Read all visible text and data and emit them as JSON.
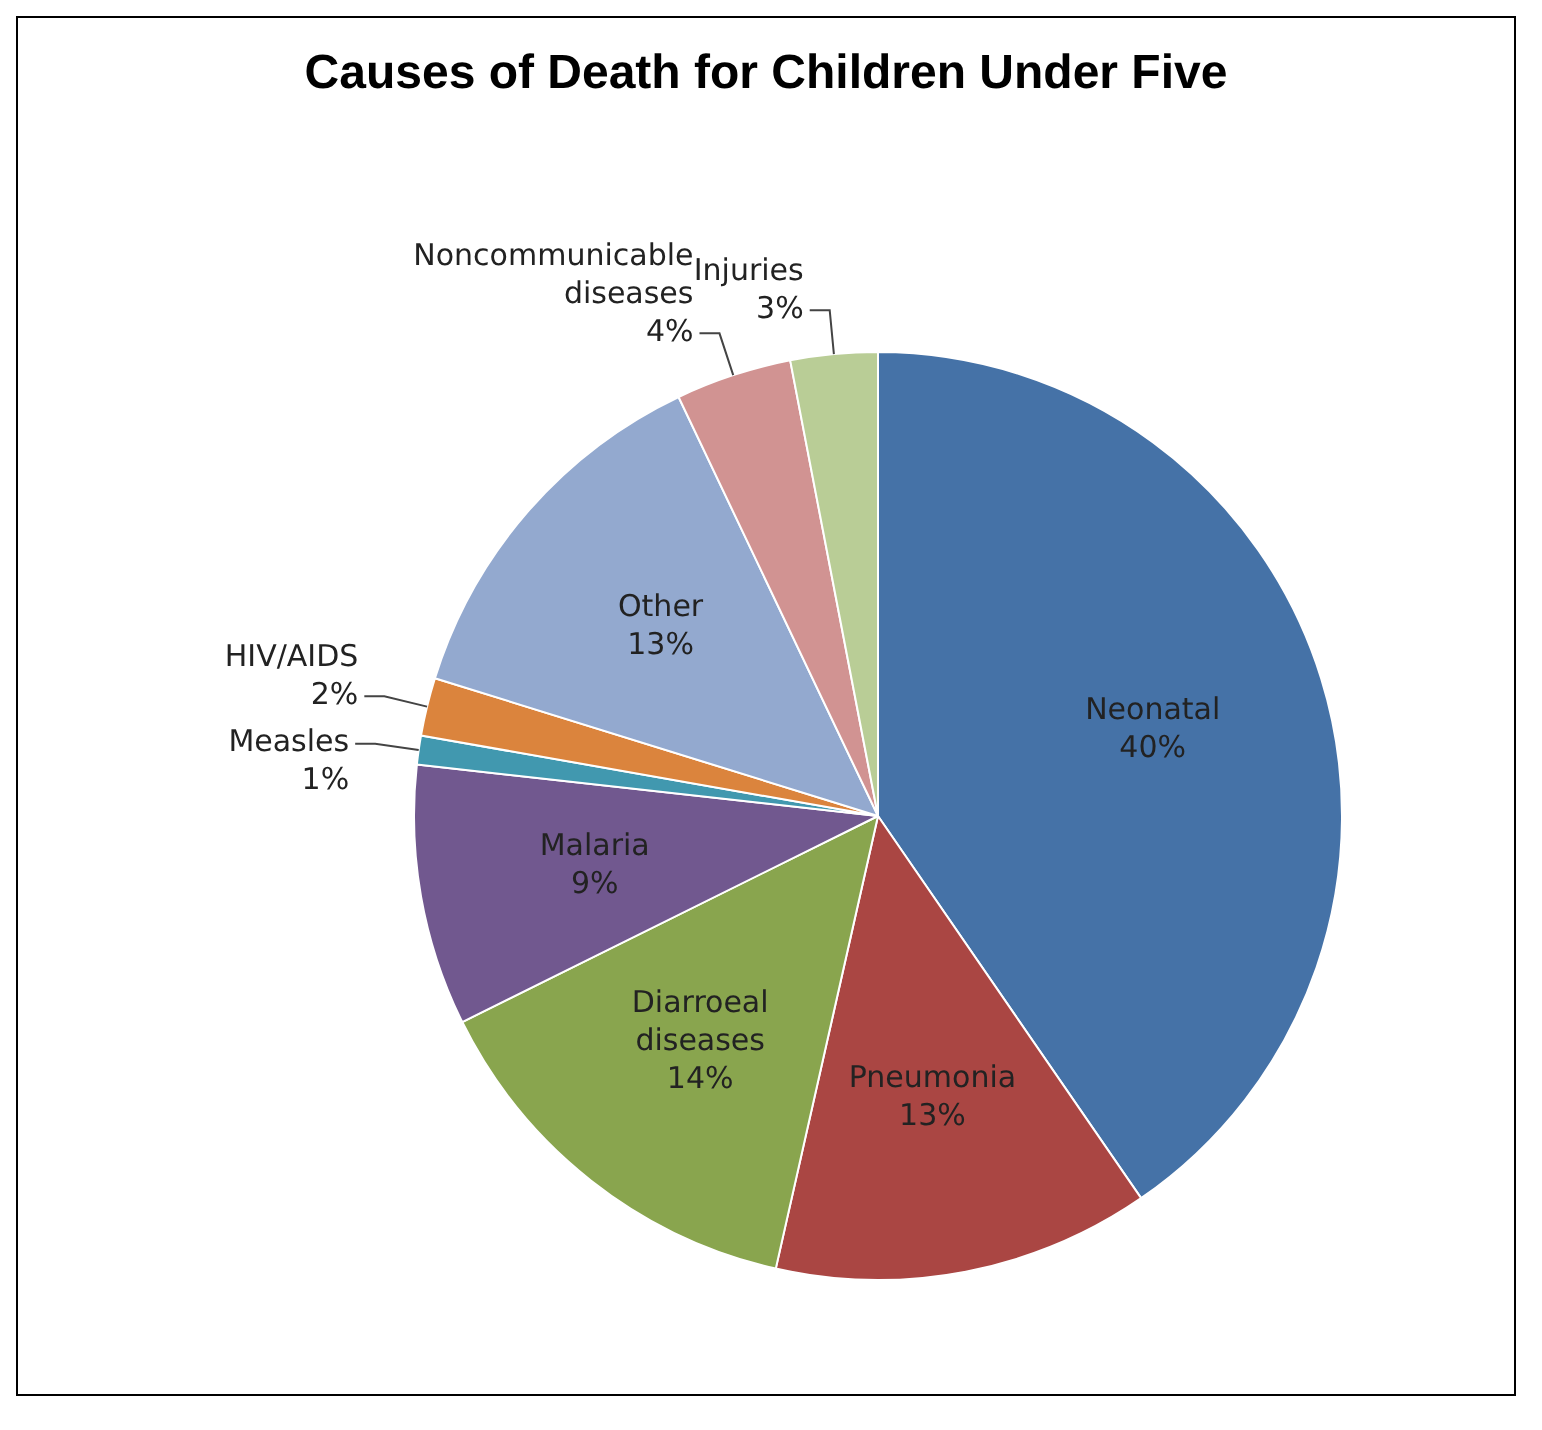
{
  "chart_data": {
    "type": "pie",
    "title": "Causes of Death for Children Under Five",
    "categories": [
      "Neonatal",
      "Pneumonia",
      "Diarroeal diseases",
      "Malaria",
      "Measles",
      "HIV/AIDS",
      "Other",
      "Noncommunicable diseases",
      "Injuries"
    ],
    "values": [
      40,
      13,
      14,
      9,
      1,
      2,
      13,
      4,
      3
    ],
    "value_labels": [
      "40%",
      "13%",
      "14%",
      "9%",
      "1%",
      "2%",
      "13%",
      "4%",
      "3%"
    ],
    "colors": [
      "#4572a7",
      "#aa4643",
      "#89a54e",
      "#71588f",
      "#4198af",
      "#db843d",
      "#93a9cf",
      "#d19392",
      "#b9cd96"
    ],
    "legend": false
  }
}
